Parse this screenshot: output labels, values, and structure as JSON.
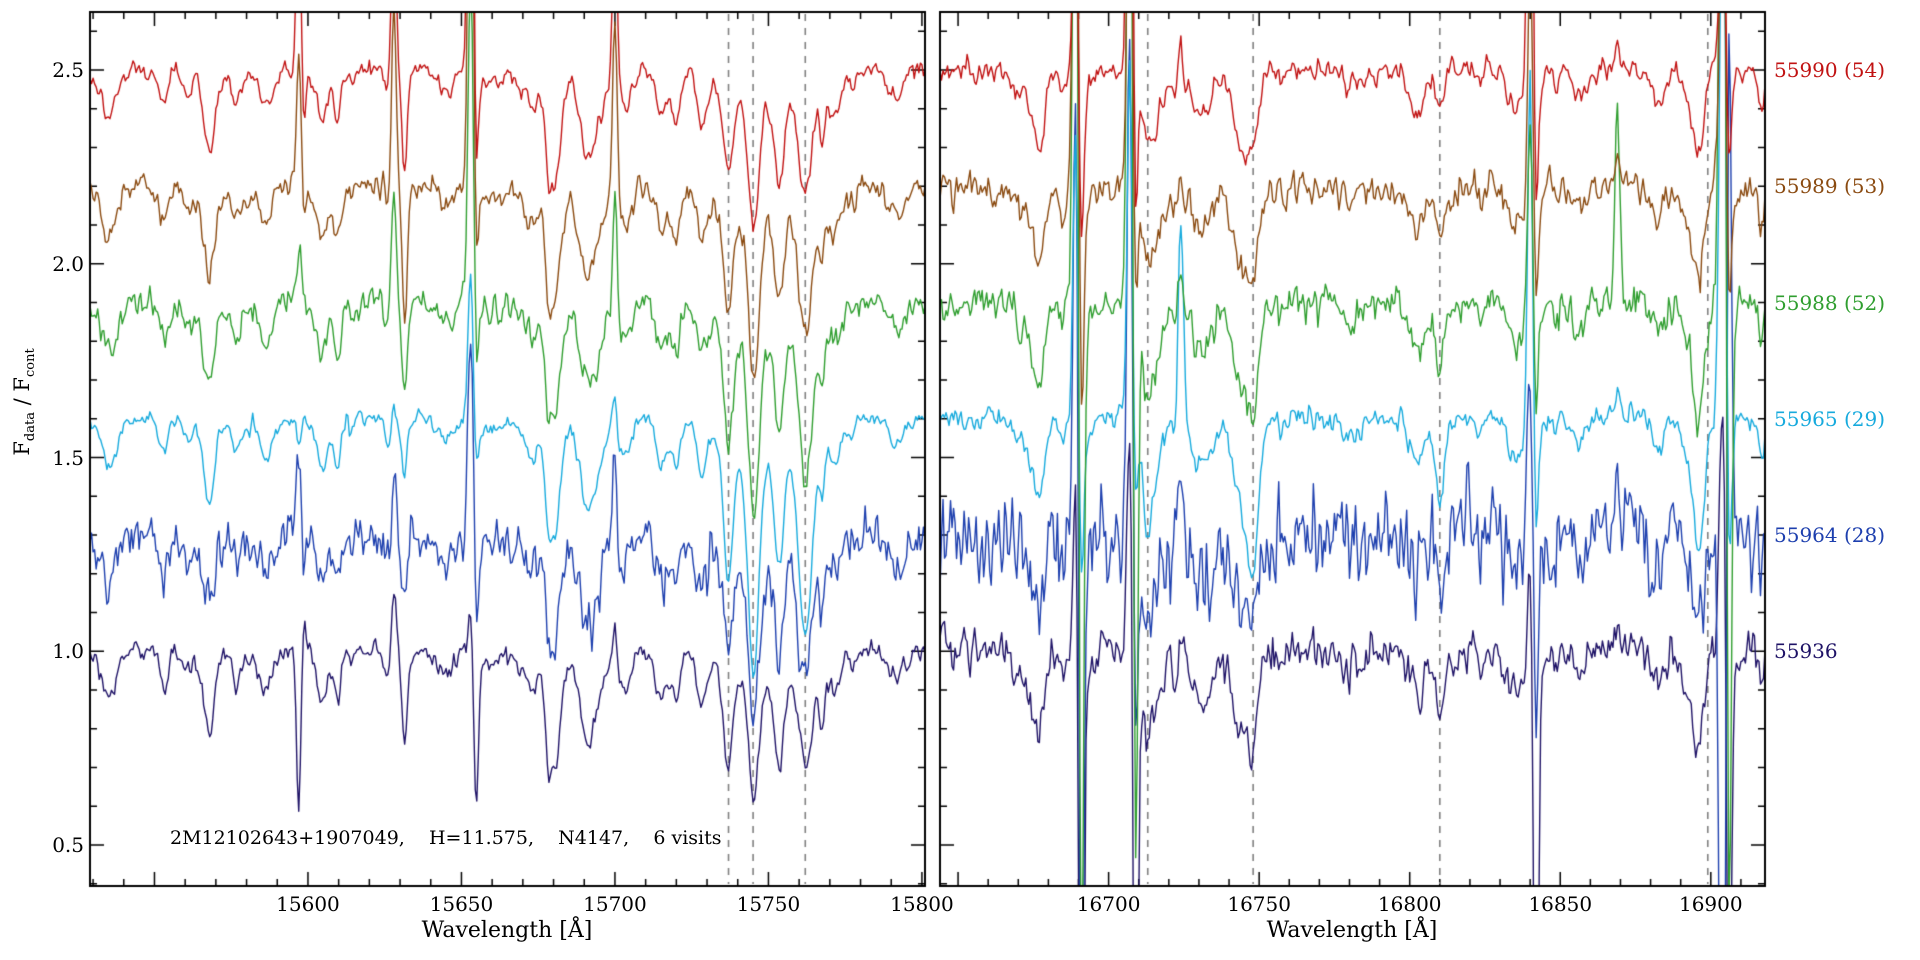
{
  "chart_data": {
    "type": "line",
    "title": "",
    "y_label": {
      "f1": "F",
      "sub1": "data",
      "sep": " / ",
      "f2": "F",
      "sub2": "cont"
    },
    "y_range": [
      0.394,
      2.65
    ],
    "y_major_step": 0.5,
    "y_minor_step": 0.1,
    "y_tick_labels": [
      "0.5",
      "1.0",
      "1.5",
      "2.0",
      "2.5"
    ],
    "annotation": "2M12102643+1907049,    H=11.575,    N4147,    6 visits",
    "dashed_line_color": "#808080",
    "frame_color": "#000000",
    "legend_position": "right-outside",
    "grid": false,
    "panels": [
      {
        "x_label": "Wavelength [Å]",
        "x_range": [
          15529,
          15801
        ],
        "x_major_step": 50,
        "x_minor_step": 10,
        "x_tick_labels": [
          "15600",
          "15650",
          "15700",
          "15750",
          "15800"
        ],
        "dashed_lines": [
          15737,
          15745,
          15762
        ],
        "features": [
          {
            "x": 15568.5,
            "w": 1.2,
            "amps": [
              -0.12,
              -0.12,
              -0.1,
              -0.12,
              -0.1,
              -0.12
            ]
          },
          {
            "x": 15597.0,
            "w": 0.7,
            "amps": [
              0.5,
              0.35,
              0.15,
              -0.08,
              0.2,
              -0.42
            ]
          },
          {
            "x": 15598.6,
            "w": 0.6,
            "amps": [
              -0.15,
              -0.1,
              0.0,
              0.0,
              -0.05,
              0.1
            ]
          },
          {
            "x": 15628.0,
            "w": 0.8,
            "amps": [
              0.45,
              0.5,
              0.32,
              0.06,
              0.22,
              0.18
            ]
          },
          {
            "x": 15631.5,
            "w": 0.8,
            "amps": [
              -0.28,
              -0.33,
              -0.22,
              -0.14,
              -0.12,
              -0.25
            ]
          },
          {
            "x": 15653.0,
            "w": 0.8,
            "amps": [
              1.3,
              1.3,
              0.9,
              0.4,
              0.55,
              0.1
            ]
          },
          {
            "x": 15654.8,
            "w": 0.7,
            "amps": [
              -0.25,
              -0.2,
              -0.15,
              -0.1,
              -0.2,
              -0.38
            ]
          },
          {
            "x": 15700.0,
            "w": 0.7,
            "amps": [
              0.55,
              0.5,
              0.35,
              0.12,
              0.3,
              0.12
            ]
          },
          {
            "x": 15737.0,
            "w": 1.8,
            "amps": [
              -0.2,
              -0.26,
              -0.3,
              -0.34,
              -0.2,
              -0.22
            ]
          },
          {
            "x": 15745.0,
            "w": 2.0,
            "amps": [
              -0.22,
              -0.3,
              -0.36,
              -0.46,
              -0.26,
              -0.18
            ]
          },
          {
            "x": 15762.0,
            "w": 2.4,
            "amps": [
              -0.32,
              -0.38,
              -0.46,
              -0.56,
              -0.38,
              -0.3
            ]
          },
          {
            "x": 15753.0,
            "w": 1.4,
            "amps": [
              -0.1,
              -0.12,
              -0.15,
              -0.2,
              -0.12,
              -0.12
            ]
          }
        ]
      },
      {
        "x_label": "Wavelength [Å]",
        "x_range": [
          16644,
          16918
        ],
        "x_major_step": 50,
        "x_minor_step": 10,
        "x_tick_labels": [
          "16700",
          "16750",
          "16800",
          "16850",
          "16900"
        ],
        "dashed_lines": [
          16713,
          16748,
          16810,
          16899
        ],
        "features": [
          {
            "x": 16689.0,
            "w": 0.8,
            "amps": [
              0.6,
              1.6,
              1.8,
              0.8,
              1.2,
              0.5
            ]
          },
          {
            "x": 16691.0,
            "w": 0.7,
            "amps": [
              -0.3,
              -0.5,
              -1.8,
              -0.3,
              -1.6,
              -1.9
            ]
          },
          {
            "x": 16707.0,
            "w": 0.8,
            "amps": [
              1.6,
              1.2,
              1.9,
              0.9,
              1.3,
              0.6
            ]
          },
          {
            "x": 16709.0,
            "w": 0.7,
            "amps": [
              -0.4,
              -0.3,
              -1.5,
              -0.2,
              -0.5,
              -1.7
            ]
          },
          {
            "x": 16713.0,
            "w": 1.6,
            "amps": [
              -0.2,
              -0.22,
              -0.25,
              -0.3,
              -0.2,
              -0.22
            ]
          },
          {
            "x": 16724.0,
            "w": 0.9,
            "amps": [
              0.25,
              0.2,
              0.3,
              0.7,
              0.3,
              0.2
            ]
          },
          {
            "x": 16748.0,
            "w": 1.8,
            "amps": [
              -0.16,
              -0.2,
              -0.26,
              -0.36,
              -0.2,
              -0.2
            ]
          },
          {
            "x": 16810.0,
            "w": 1.5,
            "amps": [
              -0.1,
              -0.12,
              -0.16,
              -0.2,
              -0.12,
              -0.15
            ]
          },
          {
            "x": 16840.0,
            "w": 0.8,
            "amps": [
              1.5,
              0.7,
              0.6,
              1.0,
              0.5,
              0.4
            ]
          },
          {
            "x": 16842.0,
            "w": 0.7,
            "amps": [
              -0.3,
              -0.2,
              -0.2,
              -0.2,
              -0.3,
              -1.5
            ]
          },
          {
            "x": 16869.0,
            "w": 0.8,
            "amps": [
              0.08,
              0.1,
              0.5,
              0.1,
              0.2,
              0.08
            ]
          },
          {
            "x": 16896.0,
            "w": 1.8,
            "amps": [
              -0.2,
              -0.24,
              -0.3,
              -0.34,
              -0.24,
              -0.28
            ]
          },
          {
            "x": 16904.0,
            "w": 1.0,
            "amps": [
              0.5,
              0.9,
              2.2,
              1.6,
              -2.2,
              0.7
            ]
          },
          {
            "x": 16906.0,
            "w": 0.8,
            "amps": [
              -0.3,
              -0.4,
              -1.8,
              -0.5,
              1.5,
              -1.2
            ]
          }
        ]
      }
    ],
    "series": [
      {
        "label": "55990 (54)",
        "color": "#c11212",
        "offset": 2.5,
        "noise": [
          0.016,
          0.02
        ],
        "seed": 11
      },
      {
        "label": "55989 (53)",
        "color": "#8a4a10",
        "offset": 2.2,
        "noise": [
          0.022,
          0.028
        ],
        "seed": 22
      },
      {
        "label": "55988 (52)",
        "color": "#2f9e2f",
        "offset": 1.9,
        "noise": [
          0.024,
          0.032
        ],
        "seed": 33
      },
      {
        "label": "55965 (29)",
        "color": "#16aadd",
        "offset": 1.6,
        "noise": [
          0.014,
          0.02
        ],
        "seed": 44
      },
      {
        "label": "55964 (28)",
        "color": "#1d3fae",
        "offset": 1.3,
        "noise": [
          0.042,
          0.075
        ],
        "seed": 55
      },
      {
        "label": "55936",
        "color": "#1e1266",
        "offset": 1.0,
        "noise": [
          0.018,
          0.035
        ],
        "seed": 66
      }
    ],
    "random_lines": {
      "left_count": 55,
      "right_count": 38,
      "left_seed": 7,
      "right_seed": 13,
      "max_depth": 0.11,
      "min_width": 0.7,
      "max_width": 2.4
    }
  }
}
